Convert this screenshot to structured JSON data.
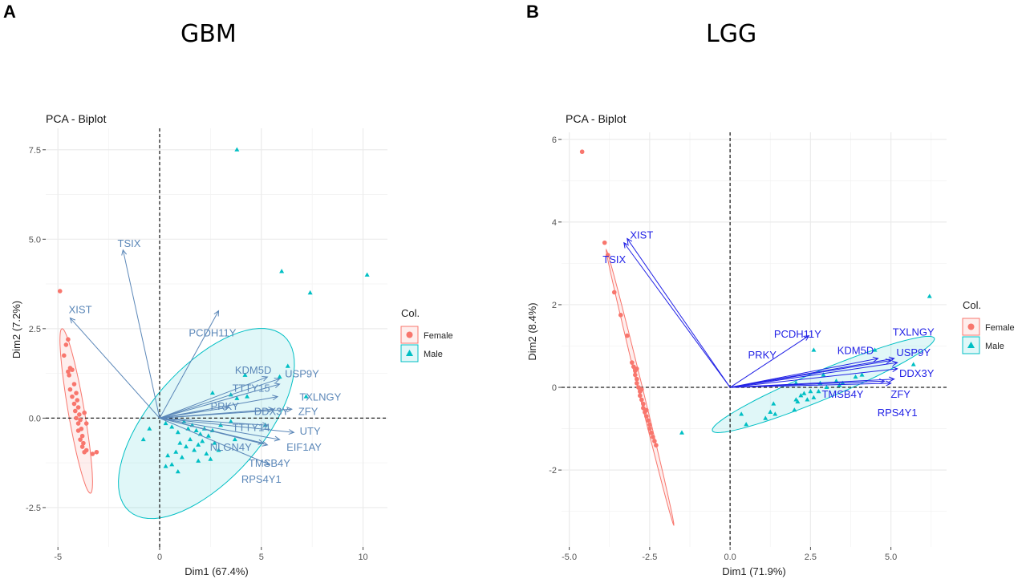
{
  "figure": {
    "letter_a": "A",
    "letter_b": "B",
    "name_a": "GBM",
    "name_b": "LGG"
  },
  "colors": {
    "female": "#f8766d",
    "male": "#00bfc4",
    "arrow_a": "#5b87b8",
    "arrow_b": "#2222e6",
    "grid": "#ebebeb"
  },
  "chart_data": [
    {
      "type": "scatter",
      "title": "PCA - Biplot",
      "xlabel": "Dim1 (67.4%)",
      "ylabel": "Dim2 (7.2%)",
      "xlim": [
        -5.6,
        11.2
      ],
      "ylim": [
        -3.6,
        8.1
      ],
      "xticks": [
        -5,
        0,
        5,
        10
      ],
      "xtick_labels": [
        "-5",
        "0",
        "5",
        "10"
      ],
      "yticks": [
        -2.5,
        0,
        2.5,
        5,
        7.5
      ],
      "ytick_labels": [
        "-2.5",
        "0.0",
        "2.5",
        "5.0",
        "7.5"
      ],
      "xminor": [
        -2.5,
        2.5,
        7.5
      ],
      "yminor": [
        -1.25,
        1.25,
        3.75,
        6.25
      ],
      "legend": {
        "title": "Col.",
        "entries": [
          "Female",
          "Male"
        ],
        "placement": "right"
      },
      "series": [
        {
          "name": "Female",
          "points": [
            [
              -4.9,
              3.55
            ],
            [
              -4.5,
              2.2
            ],
            [
              -4.6,
              2.05
            ],
            [
              -4.7,
              1.75
            ],
            [
              -4.4,
              1.4
            ],
            [
              -4.5,
              1.3
            ],
            [
              -4.3,
              1.35
            ],
            [
              -4.45,
              1.2
            ],
            [
              -4.2,
              0.95
            ],
            [
              -4.4,
              0.8
            ],
            [
              -4.1,
              0.7
            ],
            [
              -4.3,
              0.6
            ],
            [
              -4.05,
              0.5
            ],
            [
              -4.2,
              0.4
            ],
            [
              -4.0,
              0.3
            ],
            [
              -4.15,
              0.2
            ],
            [
              -3.95,
              0.1
            ],
            [
              -4.1,
              0.0
            ],
            [
              -3.9,
              -0.05
            ],
            [
              -4.0,
              -0.15
            ],
            [
              -3.85,
              -0.3
            ],
            [
              -4.0,
              -0.35
            ],
            [
              -3.8,
              -0.5
            ],
            [
              -3.9,
              -0.6
            ],
            [
              -3.75,
              -0.7
            ],
            [
              -3.8,
              -0.8
            ],
            [
              -3.7,
              -0.95
            ],
            [
              -3.6,
              -0.9
            ],
            [
              -3.3,
              -1.0
            ],
            [
              -3.1,
              -0.95
            ],
            [
              -3.6,
              -0.15
            ],
            [
              -3.7,
              0.15
            ]
          ]
        },
        {
          "name": "Male",
          "points": [
            [
              3.8,
              7.5
            ],
            [
              6.0,
              4.1
            ],
            [
              7.4,
              3.5
            ],
            [
              10.2,
              4.0
            ],
            [
              6.3,
              1.45
            ],
            [
              5.9,
              1.15
            ],
            [
              7.2,
              0.6
            ],
            [
              4.2,
              1.2
            ],
            [
              2.6,
              0.7
            ],
            [
              3.5,
              0.65
            ],
            [
              4.3,
              0.6
            ],
            [
              3.8,
              0.55
            ],
            [
              -0.8,
              -0.6
            ],
            [
              -0.5,
              -0.3
            ],
            [
              0.3,
              -0.15
            ],
            [
              0.6,
              -0.25
            ],
            [
              0.9,
              -0.4
            ],
            [
              1.2,
              -0.1
            ],
            [
              1.4,
              -0.3
            ],
            [
              1.6,
              -0.2
            ],
            [
              1.8,
              -0.35
            ],
            [
              2.0,
              -0.45
            ],
            [
              2.2,
              -0.3
            ],
            [
              2.4,
              -0.5
            ],
            [
              2.6,
              -0.35
            ],
            [
              1.0,
              -0.7
            ],
            [
              1.3,
              -0.8
            ],
            [
              1.5,
              -0.6
            ],
            [
              1.7,
              -0.9
            ],
            [
              1.9,
              -0.75
            ],
            [
              2.1,
              -0.65
            ],
            [
              2.3,
              -1.0
            ],
            [
              0.8,
              -0.95
            ],
            [
              1.1,
              -1.1
            ],
            [
              0.4,
              -1.05
            ],
            [
              0.6,
              -1.3
            ],
            [
              2.7,
              -0.7
            ],
            [
              2.5,
              -1.15
            ],
            [
              2.9,
              -0.9
            ],
            [
              1.9,
              -1.2
            ],
            [
              0.9,
              -1.5
            ],
            [
              0.3,
              -1.35
            ],
            [
              3.5,
              -0.1
            ],
            [
              3.0,
              -0.2
            ],
            [
              5.2,
              -0.2
            ],
            [
              3.7,
              -0.6
            ]
          ]
        }
      ],
      "ellipses": [
        {
          "group": "Female",
          "center": [
            -4.1,
            0.2
          ],
          "v1": [
            -0.7,
            2.3
          ],
          "v2": [
            0.39,
            0.04
          ]
        },
        {
          "group": "Male",
          "center": [
            2.3,
            -0.15
          ],
          "v1": [
            3.8,
            2.45
          ],
          "v2": [
            2.07,
            -1.03
          ]
        }
      ],
      "vectors": [
        {
          "label": "TSIX",
          "x": -1.8,
          "y": 4.7,
          "lx": -1.5,
          "ly": 4.9
        },
        {
          "label": "XIST",
          "x": -4.4,
          "y": 2.8,
          "lx": -3.9,
          "ly": 3.05
        },
        {
          "label": "PCDH11Y",
          "x": 2.9,
          "y": 3.0,
          "lx": 2.6,
          "ly": 2.4
        },
        {
          "label": "KDM5D",
          "x": 5.3,
          "y": 1.15,
          "lx": 4.6,
          "ly": 1.35
        },
        {
          "label": "USP9Y",
          "x": 5.9,
          "y": 1.1,
          "lx": 7.0,
          "ly": 1.25
        },
        {
          "label": "TTTY15",
          "x": 5.9,
          "y": 0.95,
          "lx": 4.5,
          "ly": 0.85
        },
        {
          "label": "TXLNGY",
          "x": 5.8,
          "y": 0.6,
          "lx": 7.9,
          "ly": 0.6
        },
        {
          "label": "PRKY",
          "x": 3.4,
          "y": 0.3,
          "lx": 3.2,
          "ly": 0.35
        },
        {
          "label": "DDX3Y",
          "x": 5.6,
          "y": 0.25,
          "lx": 5.5,
          "ly": 0.2
        },
        {
          "label": "ZFY",
          "x": 6.5,
          "y": 0.25,
          "lx": 7.3,
          "ly": 0.2
        },
        {
          "label": "UTY",
          "x": 6.6,
          "y": -0.4,
          "lx": 7.4,
          "ly": -0.35
        },
        {
          "label": "TTTY14",
          "x": 5.3,
          "y": -0.2,
          "lx": 4.5,
          "ly": -0.25
        },
        {
          "label": "EIF1AY",
          "x": 5.9,
          "y": -0.6,
          "lx": 7.1,
          "ly": -0.8
        },
        {
          "label": "NLGN4Y",
          "x": 5.1,
          "y": -0.7,
          "lx": 3.5,
          "ly": -0.8
        },
        {
          "label": "TMSB4Y",
          "x": 5.3,
          "y": -0.75,
          "lx": 5.4,
          "ly": -1.25
        },
        {
          "label": "RPS4Y1",
          "x": 5.4,
          "y": -1.3,
          "lx": 5.0,
          "ly": -1.7
        }
      ]
    },
    {
      "type": "scatter",
      "title": "PCA - Biplot",
      "xlabel": "Dim1 (71.9%)",
      "ylabel": "Dim2 (8.4%)",
      "xlim": [
        -5.24,
        6.73
      ],
      "ylim": [
        -3.86,
        6.17
      ],
      "xticks": [
        -5,
        -2.5,
        0,
        2.5,
        5
      ],
      "xtick_labels": [
        "-5.0",
        "-2.5",
        "0.0",
        "2.5",
        "5.0"
      ],
      "yticks": [
        -2,
        0,
        2,
        4,
        6
      ],
      "ytick_labels": [
        "-2",
        "0",
        "2",
        "4",
        "6"
      ],
      "xminor": [
        -3.75,
        -1.25,
        1.25,
        3.75,
        6.25
      ],
      "yminor": [
        -3,
        -1,
        1,
        3,
        5
      ],
      "legend": {
        "title": "Col.",
        "entries": [
          "Female",
          "Male"
        ],
        "placement": "right"
      },
      "series": [
        {
          "name": "Female",
          "points": [
            [
              -4.6,
              5.7
            ],
            [
              -3.9,
              3.5
            ],
            [
              -3.8,
              3.2
            ],
            [
              -3.6,
              2.3
            ],
            [
              -3.4,
              1.75
            ],
            [
              -3.2,
              1.25
            ],
            [
              -3.05,
              0.6
            ],
            [
              -3.0,
              0.5
            ],
            [
              -2.95,
              0.4
            ],
            [
              -2.95,
              0.3
            ],
            [
              -2.9,
              0.2
            ],
            [
              -2.9,
              0.1
            ],
            [
              -2.85,
              0.0
            ],
            [
              -2.8,
              -0.1
            ],
            [
              -2.8,
              -0.2
            ],
            [
              -2.75,
              -0.3
            ],
            [
              -2.7,
              -0.4
            ],
            [
              -2.7,
              -0.5
            ],
            [
              -2.65,
              -0.6
            ],
            [
              -2.6,
              -0.7
            ],
            [
              -2.55,
              -0.8
            ],
            [
              -2.5,
              -0.9
            ],
            [
              -2.5,
              -1.0
            ],
            [
              -2.45,
              -1.1
            ],
            [
              -2.4,
              -1.2
            ],
            [
              -2.35,
              -1.3
            ],
            [
              -2.3,
              -1.4
            ],
            [
              -2.9,
              0.45
            ],
            [
              -2.75,
              -0.05
            ],
            [
              -2.6,
              -0.55
            ]
          ]
        },
        {
          "name": "Male",
          "points": [
            [
              -1.5,
              -1.1
            ],
            [
              6.2,
              2.2
            ],
            [
              2.6,
              0.9
            ],
            [
              5.7,
              0.55
            ],
            [
              4.5,
              0.9
            ],
            [
              0.35,
              -0.65
            ],
            [
              0.5,
              -0.9
            ],
            [
              1.1,
              -0.75
            ],
            [
              1.25,
              -0.6
            ],
            [
              1.4,
              -0.65
            ],
            [
              1.35,
              -0.4
            ],
            [
              2.0,
              -0.55
            ],
            [
              2.05,
              -0.3
            ],
            [
              2.1,
              -0.35
            ],
            [
              2.2,
              -0.2
            ],
            [
              2.3,
              -0.15
            ],
            [
              2.4,
              -0.3
            ],
            [
              2.5,
              -0.1
            ],
            [
              2.6,
              -0.25
            ],
            [
              2.8,
              0.1
            ],
            [
              3.0,
              0.0
            ],
            [
              3.3,
              0.15
            ],
            [
              3.5,
              0.1
            ],
            [
              3.9,
              0.25
            ],
            [
              4.1,
              0.3
            ],
            [
              2.05,
              0.1
            ],
            [
              2.75,
              -0.1
            ],
            [
              2.9,
              0.3
            ],
            [
              3.4,
              0.05
            ]
          ]
        }
      ],
      "ellipses": [
        {
          "group": "Female",
          "center": [
            -2.8,
            0.0
          ],
          "v1": [
            -1.05,
            3.33
          ],
          "v2": [
            0.07,
            0.01
          ]
        },
        {
          "group": "Male",
          "center": [
            2.9,
            0.07
          ],
          "v1": [
            3.45,
            1.12
          ],
          "v2": [
            0.17,
            -0.32
          ]
        }
      ],
      "vectors": [
        {
          "label": "XIST",
          "x": -3.2,
          "y": 3.6,
          "lx": -2.75,
          "ly": 3.7
        },
        {
          "label": "TSIX",
          "x": -3.3,
          "y": 3.5,
          "lx": -3.6,
          "ly": 3.1
        },
        {
          "label": "PCDH11Y",
          "x": 2.45,
          "y": 1.25,
          "lx": 2.1,
          "ly": 1.3
        },
        {
          "label": "PRKY",
          "x": 4.6,
          "y": 0.7,
          "lx": 1.0,
          "ly": 0.8
        },
        {
          "label": "KDM5D",
          "x": 5.0,
          "y": 0.65,
          "lx": 3.9,
          "ly": 0.9
        },
        {
          "label": "TXLNGY",
          "x": 5.1,
          "y": 0.7,
          "lx": 5.7,
          "ly": 1.35
        },
        {
          "label": "USP9Y",
          "x": 5.2,
          "y": 0.6,
          "lx": 5.7,
          "ly": 0.85
        },
        {
          "label": "DDX3Y",
          "x": 5.2,
          "y": 0.45,
          "lx": 5.8,
          "ly": 0.35
        },
        {
          "label": "ZFY",
          "x": 5.0,
          "y": 0.1,
          "lx": 5.3,
          "ly": -0.15
        },
        {
          "label": "TMSB4Y",
          "x": 4.8,
          "y": 0.15,
          "lx": 3.5,
          "ly": -0.15
        },
        {
          "label": "RPS4Y1",
          "x": 5.1,
          "y": 0.2,
          "lx": 5.2,
          "ly": -0.6
        }
      ]
    }
  ]
}
